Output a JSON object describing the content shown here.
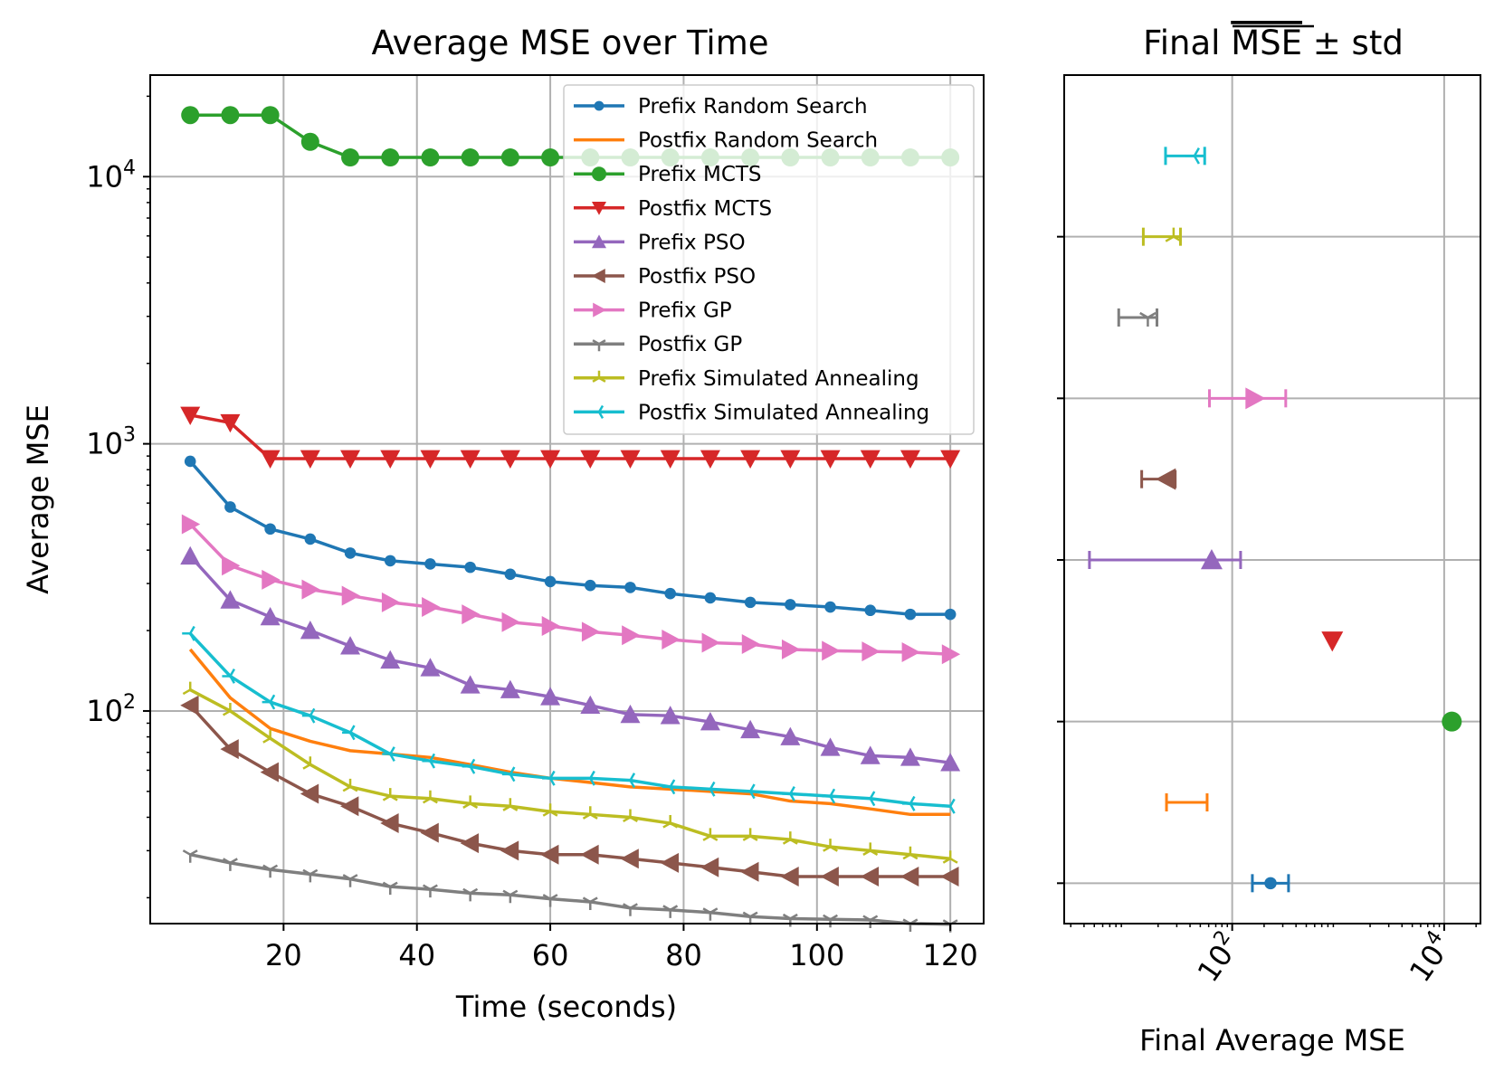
{
  "chart_data": [
    {
      "type": "line",
      "title": "Average MSE over Time",
      "xlabel": "Time (seconds)",
      "ylabel": "Average MSE",
      "yscale": "log",
      "xlim": [
        0,
        125
      ],
      "ylim": [
        16,
        24000
      ],
      "xticks": [
        20,
        40,
        60,
        80,
        100,
        120
      ],
      "xtick_labels": [
        "20",
        "40",
        "60",
        "80",
        "100",
        "120"
      ],
      "yticks": [
        100,
        1000,
        10000
      ],
      "ytick_base": "10",
      "ytick_exponents": [
        "2",
        "3",
        "4"
      ],
      "grid": true,
      "legend_position": "top-right",
      "x": [
        6,
        12,
        18,
        24,
        30,
        36,
        42,
        48,
        54,
        60,
        66,
        72,
        78,
        84,
        90,
        96,
        102,
        108,
        114,
        120
      ],
      "series": [
        {
          "name": "Prefix Random Search",
          "color": "#1f77b4",
          "marker": "point",
          "values": [
            860,
            580,
            480,
            440,
            390,
            365,
            355,
            345,
            325,
            305,
            295,
            290,
            275,
            265,
            255,
            250,
            245,
            238,
            230,
            230
          ]
        },
        {
          "name": "Postfix Random Search",
          "color": "#ff7f0e",
          "marker": "none",
          "values": [
            170,
            112,
            86,
            77,
            71,
            69,
            67,
            63,
            59,
            56,
            54,
            52,
            51,
            50,
            49,
            46,
            45,
            43,
            41,
            41
          ]
        },
        {
          "name": "Prefix MCTS",
          "color": "#2ca02c",
          "marker": "circle",
          "values": [
            17000,
            17000,
            17000,
            13500,
            11800,
            11800,
            11800,
            11800,
            11800,
            11800,
            11800,
            11800,
            11800,
            11800,
            11800,
            11800,
            11800,
            11800,
            11800,
            11800
          ]
        },
        {
          "name": "Postfix MCTS",
          "color": "#d62728",
          "marker": "triangle-down",
          "values": [
            1280,
            1200,
            880,
            880,
            880,
            880,
            880,
            880,
            880,
            880,
            880,
            880,
            880,
            880,
            880,
            880,
            880,
            880,
            880,
            880
          ]
        },
        {
          "name": "Prefix PSO",
          "color": "#9467bd",
          "marker": "triangle-up",
          "values": [
            380,
            260,
            225,
            200,
            175,
            155,
            145,
            125,
            120,
            113,
            105,
            97,
            96,
            91,
            85,
            80,
            73,
            68,
            67,
            64
          ]
        },
        {
          "name": "Postfix PSO",
          "color": "#8c564b",
          "marker": "triangle-left",
          "values": [
            105,
            72,
            59,
            49,
            44,
            38,
            35,
            32,
            30,
            29,
            29,
            28,
            27,
            26,
            25,
            24,
            24,
            24,
            24,
            24
          ]
        },
        {
          "name": "Prefix GP",
          "color": "#e377c2",
          "marker": "triangle-right",
          "values": [
            500,
            350,
            310,
            285,
            270,
            255,
            245,
            230,
            215,
            208,
            198,
            192,
            185,
            180,
            178,
            170,
            168,
            167,
            166,
            163
          ]
        },
        {
          "name": "Postfix GP",
          "color": "#7f7f7f",
          "marker": "tri-down",
          "values": [
            29,
            27,
            25.5,
            24.5,
            23.5,
            22,
            21.5,
            20.8,
            20.5,
            19.8,
            19.3,
            18.3,
            18,
            17.6,
            17,
            16.7,
            16.6,
            16.5,
            16,
            15.9
          ]
        },
        {
          "name": "Prefix Simulated Annealing",
          "color": "#bcbd22",
          "marker": "tri-up",
          "values": [
            120,
            100,
            79,
            63,
            52,
            48,
            47,
            45,
            44,
            42,
            41,
            40,
            38,
            34,
            34,
            33,
            31,
            30,
            29,
            28
          ]
        },
        {
          "name": "Postfix Simulated Annealing",
          "color": "#17becf",
          "marker": "tri-left",
          "values": [
            195,
            135,
            108,
            96,
            83,
            69,
            65,
            62,
            58,
            56,
            56,
            55,
            52,
            51,
            50,
            49,
            48,
            47,
            45,
            44
          ]
        }
      ]
    },
    {
      "type": "errorbar",
      "title_prefix": "Final ",
      "title_overlined": "MSE",
      "title_suffix": " ± std",
      "xlabel": "Final Average MSE",
      "xscale": "log",
      "xlim": [
        2.6,
        22000
      ],
      "xticks": [
        100,
        10000
      ],
      "xtick_base": "10",
      "xtick_exponents": [
        "2",
        "4"
      ],
      "grid": true,
      "points": [
        {
          "name": "Prefix Random Search",
          "color": "#1f77b4",
          "marker": "point",
          "value": 230,
          "err_low": 155,
          "err_high": 340
        },
        {
          "name": "Postfix Random Search",
          "color": "#ff7f0e",
          "marker": "none",
          "value": 41,
          "err_low": 24,
          "err_high": 58
        },
        {
          "name": "Prefix MCTS",
          "color": "#2ca02c",
          "marker": "circle",
          "value": 11800,
          "err_low": 11800,
          "err_high": 11800
        },
        {
          "name": "Postfix MCTS",
          "color": "#d62728",
          "marker": "triangle-down",
          "value": 880,
          "err_low": 880,
          "err_high": 880
        },
        {
          "name": "Prefix PSO",
          "color": "#9467bd",
          "marker": "triangle-up",
          "value": 64,
          "err_low": 4.5,
          "err_high": 120
        },
        {
          "name": "Postfix PSO",
          "color": "#8c564b",
          "marker": "triangle-left",
          "value": 24,
          "err_low": 14,
          "err_high": 29
        },
        {
          "name": "Prefix GP",
          "color": "#e377c2",
          "marker": "triangle-right",
          "value": 163,
          "err_low": 61,
          "err_high": 320
        },
        {
          "name": "Postfix GP",
          "color": "#7f7f7f",
          "marker": "tri-down",
          "value": 16,
          "err_low": 8.5,
          "err_high": 19.5
        },
        {
          "name": "Prefix Simulated Annealing",
          "color": "#bcbd22",
          "marker": "tri-up",
          "value": 28,
          "err_low": 14.5,
          "err_high": 32.5
        },
        {
          "name": "Postfix Simulated Annealing",
          "color": "#17becf",
          "marker": "tri-left",
          "value": 44,
          "err_low": 23.5,
          "err_high": 55
        }
      ]
    }
  ]
}
